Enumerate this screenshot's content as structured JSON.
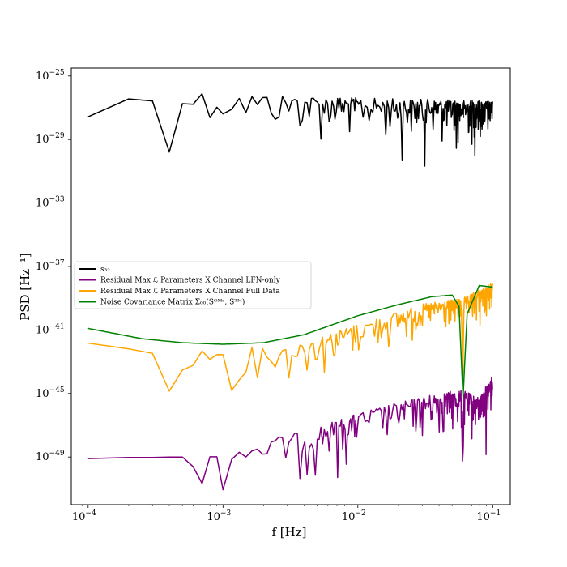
{
  "chart_data": {
    "type": "line",
    "title": "",
    "xlabel": "f [Hz]",
    "ylabel": "PSD [Hz⁻¹]",
    "xscale": "log",
    "yscale": "log",
    "xlim": [
      7.5e-05,
      0.135
    ],
    "ylim_exponent": [
      -52,
      -24.5
    ],
    "x_ticks": [
      {
        "base": "10",
        "exp": "−4"
      },
      {
        "base": "10",
        "exp": "−3"
      },
      {
        "base": "10",
        "exp": "−2"
      },
      {
        "base": "10",
        "exp": "−1"
      }
    ],
    "y_ticks": [
      {
        "base": "10",
        "exp": "−25"
      },
      {
        "base": "10",
        "exp": "−29"
      },
      {
        "base": "10",
        "exp": "−33"
      },
      {
        "base": "10",
        "exp": "−37"
      },
      {
        "base": "10",
        "exp": "−41"
      },
      {
        "base": "10",
        "exp": "−45"
      },
      {
        "base": "10",
        "exp": "−49"
      }
    ],
    "legend_position": "center-left",
    "series": [
      {
        "name": "s₃₂",
        "color": "#000000",
        "x_range": [
          0.0001,
          0.1
        ],
        "log10_y_approx": [
          [
            -4,
            -27.0
          ],
          [
            -3.5,
            -26.0
          ],
          [
            -3,
            -26.3
          ],
          [
            -2,
            -26.6
          ],
          [
            -1,
            -26.8
          ]
        ],
        "noise_dex": 1.5
      },
      {
        "name": "Residual Max ℒ Parameters X Channel LFN-only",
        "color": "#800080",
        "x_range": [
          0.0001,
          0.1
        ],
        "log10_y_approx": [
          [
            -4,
            -49.0
          ],
          [
            -3.2,
            -49.0
          ],
          [
            -2.4,
            -47.6
          ],
          [
            -1.9,
            -46.2
          ],
          [
            -1.4,
            -45.2
          ],
          [
            -1.23,
            -45.0
          ],
          [
            -1.1,
            -45.5
          ],
          [
            -1,
            -44.0
          ]
        ],
        "notch_x": 0.06,
        "noise_dex": 1.5
      },
      {
        "name": "Residual Max ℒ Parameters X Channel Full Data",
        "color": "#FFA500",
        "x_range": [
          0.0001,
          0.1
        ],
        "log10_y_approx": [
          [
            -4,
            -42.0
          ],
          [
            -3.2,
            -42.4
          ],
          [
            -2.5,
            -42.2
          ],
          [
            -2,
            -40.8
          ],
          [
            -1.5,
            -39.5
          ],
          [
            -1.23,
            -39.2
          ],
          [
            -1,
            -38.2
          ]
        ],
        "notch_x": 0.06,
        "noise_dex": 1.2
      },
      {
        "name": "Noise Covariance Matrix Σ₀₀(Sᴼᴹˢ, Sᵀᴹ)",
        "color": "#008000",
        "x_range": [
          0.0001,
          0.1
        ],
        "log10_y_approx": [
          [
            -4,
            -40.9
          ],
          [
            -3.6,
            -41.55
          ],
          [
            -3.3,
            -41.8
          ],
          [
            -3,
            -41.9
          ],
          [
            -2.7,
            -41.8
          ],
          [
            -2.4,
            -41.3
          ],
          [
            -2,
            -40.1
          ],
          [
            -1.7,
            -39.4
          ],
          [
            -1.45,
            -38.9
          ],
          [
            -1.3,
            -38.8
          ],
          [
            -1.25,
            -39.5
          ],
          [
            -1.22,
            -45.3
          ],
          [
            -1.19,
            -40.0
          ],
          [
            -1.1,
            -38.2
          ],
          [
            -1,
            -38.3
          ]
        ],
        "notch_x": 0.06,
        "noise_dex": 0
      }
    ]
  }
}
